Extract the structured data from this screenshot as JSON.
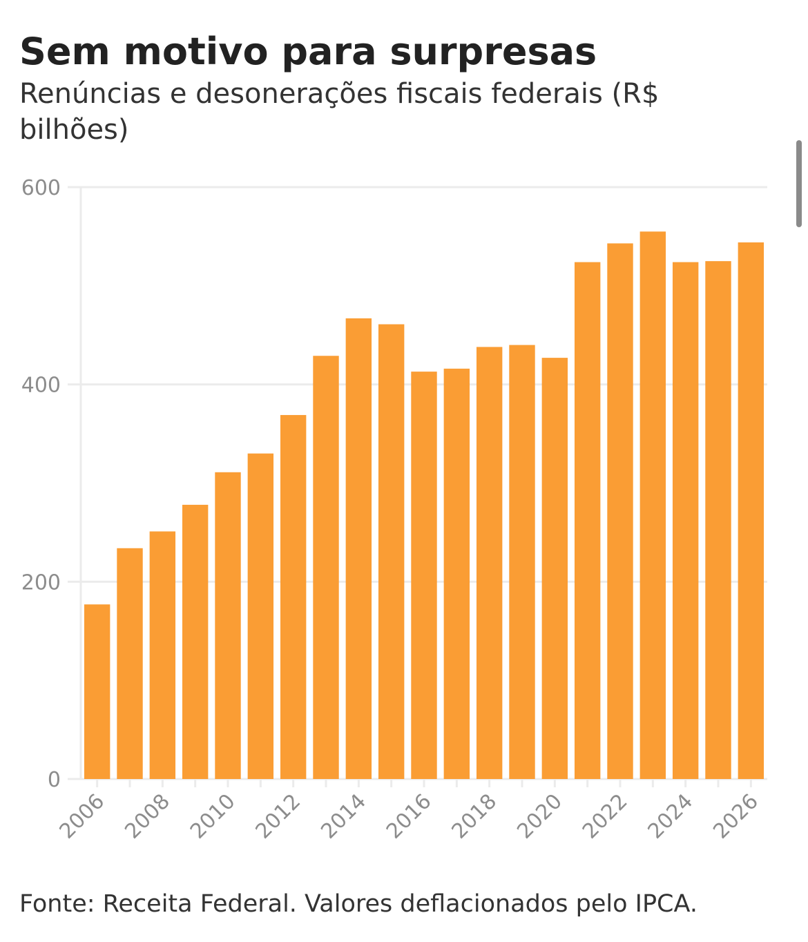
{
  "header": {
    "title": "Sem motivo para surpresas",
    "subtitle": "Renúncias e desonerações fiscais federais (R$ bilhões)"
  },
  "footer": {
    "source": "Fonte: Receita Federal. Valores deflacionados pelo IPCA."
  },
  "colors": {
    "bar": "#FA9D34",
    "grid": "#EBEBEB",
    "tick_label": "#8C8C8C",
    "title": "#222222"
  },
  "chart_data": {
    "type": "bar",
    "title": "Sem motivo para surpresas",
    "subtitle": "Renúncias e desonerações fiscais federais (R$ bilhões)",
    "xlabel": "",
    "ylabel": "",
    "ylim": [
      0,
      600
    ],
    "yticks": [
      0,
      200,
      400,
      600
    ],
    "grid": true,
    "x_tick_labels": [
      "2006",
      "2008",
      "2010",
      "2012",
      "2014",
      "2016",
      "2018",
      "2020",
      "2022",
      "2024",
      "2026"
    ],
    "categories": [
      "2006",
      "2007",
      "2008",
      "2009",
      "2010",
      "2011",
      "2012",
      "2013",
      "2014",
      "2015",
      "2016",
      "2017",
      "2018",
      "2019",
      "2020",
      "2021",
      "2022",
      "2023",
      "2024",
      "2025",
      "2026"
    ],
    "values": [
      177,
      234,
      251,
      278,
      311,
      330,
      369,
      429,
      467,
      461,
      413,
      416,
      438,
      440,
      427,
      524,
      543,
      555,
      524,
      525,
      544
    ]
  }
}
